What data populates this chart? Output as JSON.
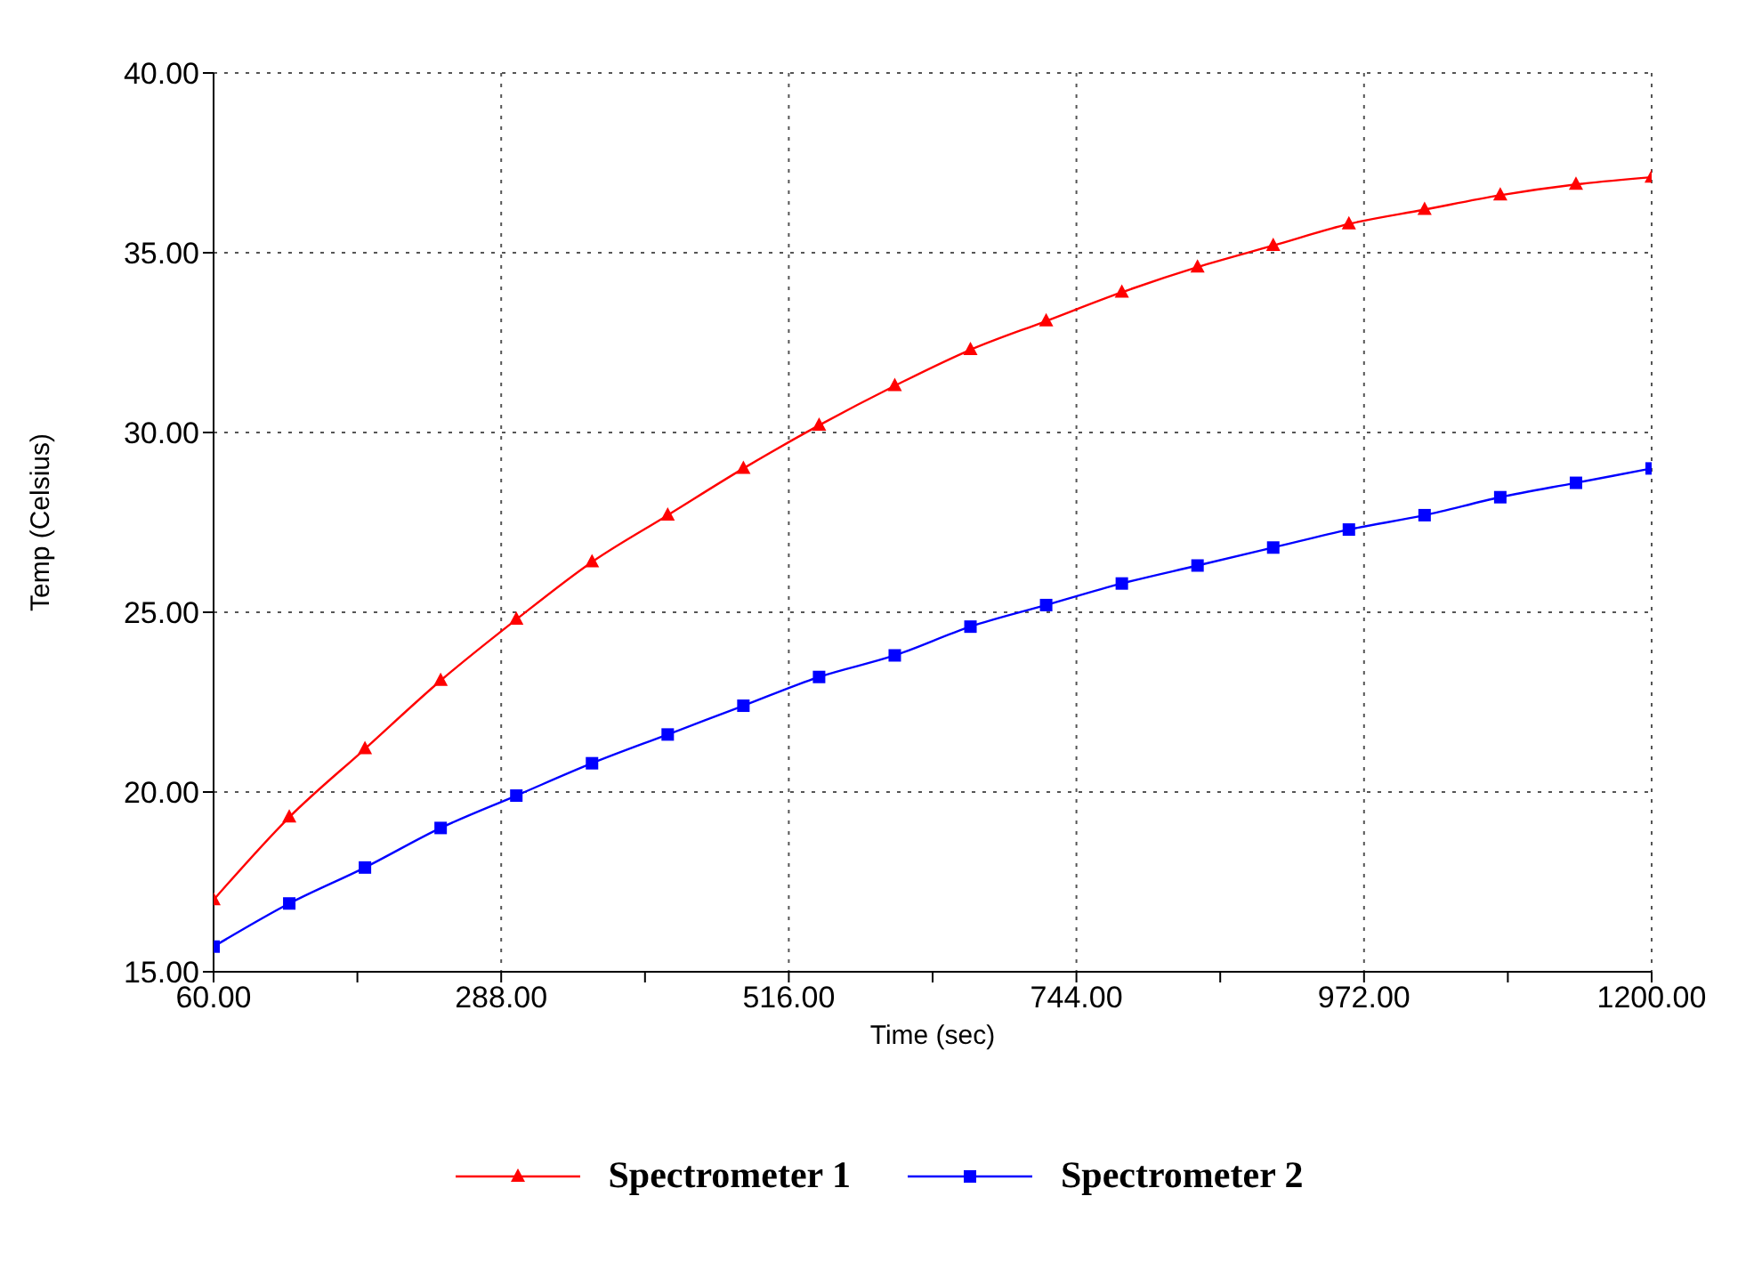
{
  "chart_data": {
    "type": "line",
    "xlabel": "Time (sec)",
    "ylabel": "Temp (Celsius)",
    "x": [
      60,
      120,
      180,
      240,
      300,
      360,
      420,
      480,
      540,
      600,
      660,
      720,
      780,
      840,
      900,
      960,
      1020,
      1080,
      1140,
      1200
    ],
    "series": [
      {
        "name": "Spectrometer 1",
        "color": "#ff0000",
        "marker": "triangle",
        "values": [
          17.0,
          19.3,
          21.2,
          23.1,
          24.8,
          26.4,
          27.7,
          29.0,
          30.2,
          31.3,
          32.3,
          33.1,
          33.9,
          34.6,
          35.2,
          35.8,
          36.2,
          36.6,
          36.9,
          37.1
        ]
      },
      {
        "name": "Spectrometer 2",
        "color": "#0000ff",
        "marker": "square",
        "values": [
          15.7,
          16.9,
          17.9,
          19.0,
          19.9,
          20.8,
          21.6,
          22.4,
          23.2,
          23.8,
          24.6,
          25.2,
          25.8,
          26.3,
          26.8,
          27.3,
          27.7,
          28.2,
          28.6,
          29.0
        ]
      }
    ],
    "xlim": [
      60,
      1200
    ],
    "xticks": [
      {
        "value": 60,
        "label": "60.00"
      },
      {
        "value": 174,
        "label": null
      },
      {
        "value": 288,
        "label": "288.00"
      },
      {
        "value": 402,
        "label": null
      },
      {
        "value": 516,
        "label": "516.00"
      },
      {
        "value": 630,
        "label": null
      },
      {
        "value": 744,
        "label": "744.00"
      },
      {
        "value": 858,
        "label": null
      },
      {
        "value": 972,
        "label": "972.00"
      },
      {
        "value": 1086,
        "label": null
      },
      {
        "value": 1200,
        "label": "1200.00"
      }
    ],
    "ylim": [
      15,
      40
    ],
    "yticks": [
      {
        "value": 15,
        "label": "15.00"
      },
      {
        "value": 20,
        "label": "20.00"
      },
      {
        "value": 25,
        "label": "25.00"
      },
      {
        "value": 30,
        "label": "30.00"
      },
      {
        "value": 35,
        "label": "35.00"
      },
      {
        "value": 40,
        "label": "40.00"
      }
    ],
    "grid": true,
    "legend": "bottom",
    "line_style": "solid"
  }
}
